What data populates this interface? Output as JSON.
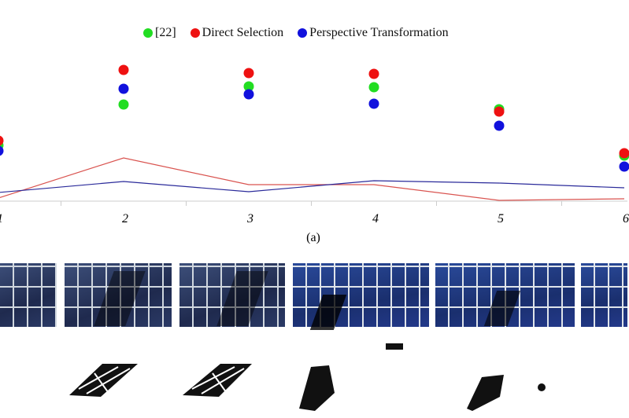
{
  "legend": {
    "items": [
      {
        "label": "[22]",
        "color": "#22dd22"
      },
      {
        "label": "Direct Selection",
        "color": "#ee1111"
      },
      {
        "label": "Perspective Transformation",
        "color": "#1111dd"
      }
    ]
  },
  "caption": "(a)",
  "chart_data": {
    "type": "scatter",
    "title": "",
    "xlabel": "",
    "ylabel": "",
    "x": [
      1,
      2,
      3,
      4,
      5,
      6
    ],
    "tick_labels": [
      "1",
      "2",
      "3",
      "4",
      "5",
      "6"
    ],
    "ylim": [
      0,
      180
    ],
    "grid": false,
    "legend_position": "top-center",
    "series": [
      {
        "name": "[22]",
        "kind": "points",
        "color": "#22dd22",
        "values": [
          71,
          123,
          146,
          145,
          117,
          58
        ]
      },
      {
        "name": "Direct Selection",
        "kind": "points",
        "color": "#ee1111",
        "values": [
          77,
          167,
          163,
          162,
          114,
          61
        ]
      },
      {
        "name": "Perspective Transformation",
        "kind": "points",
        "color": "#1111dd",
        "values": [
          64,
          143,
          136,
          124,
          96,
          44
        ]
      },
      {
        "name": "Direct Selection (line)",
        "kind": "line",
        "color": "#d9534f",
        "values": [
          4,
          55,
          21,
          21,
          1,
          3
        ]
      },
      {
        "name": "Perspective Transformation (line)",
        "kind": "line",
        "color": "#2a2a9a",
        "values": [
          11,
          25,
          12,
          26,
          23,
          17
        ]
      }
    ]
  }
}
